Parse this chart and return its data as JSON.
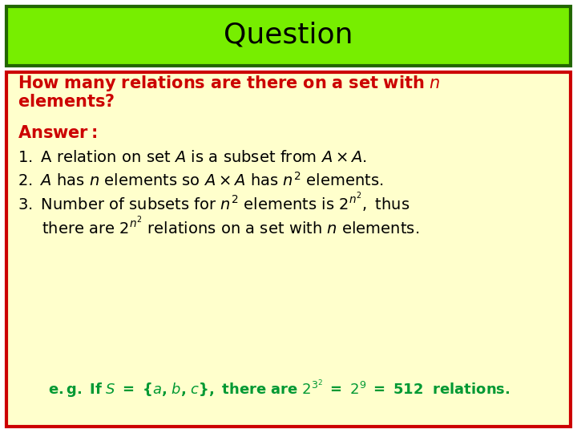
{
  "title": "Question",
  "title_bg": "#77ee00",
  "title_border": "#226600",
  "title_color": "#000000",
  "content_bg": "#ffffcc",
  "content_border": "#cc0000",
  "outer_bg": "#ffffff",
  "question_color": "#cc0000",
  "answer_color": "#cc0000",
  "body_color": "#000000",
  "example_color": "#009933"
}
